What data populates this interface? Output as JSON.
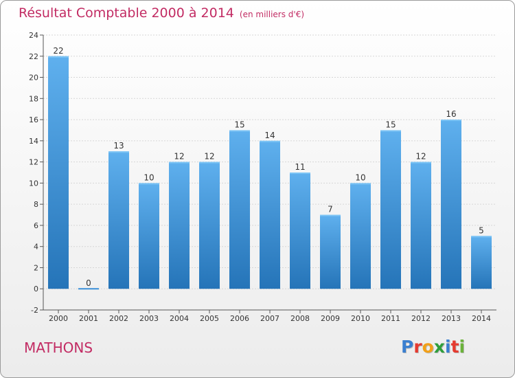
{
  "title": "Résultat Comptable 2000 à 2014",
  "subtitle": "(en milliers d'€)",
  "commune": "MATHONS",
  "logo": {
    "letters": [
      "P",
      "r",
      "o",
      "x",
      "i",
      "t",
      "i"
    ],
    "colors": [
      "#3a7fd0",
      "#e53a2f",
      "#f2a019",
      "#2f9e3b",
      "#3a7fd0",
      "#e53a2f",
      "#6bb23a"
    ]
  },
  "colors": {
    "bar": "#3a8fd8",
    "bar_light": "#5fb0ee",
    "bar_dark": "#2574b8",
    "title": "#c22b63"
  },
  "chart_data": {
    "type": "bar",
    "categories": [
      "2000",
      "2001",
      "2002",
      "2003",
      "2004",
      "2005",
      "2006",
      "2007",
      "2008",
      "2009",
      "2010",
      "2011",
      "2012",
      "2013",
      "2014"
    ],
    "values": [
      22,
      0,
      13,
      10,
      12,
      12,
      15,
      14,
      11,
      7,
      10,
      15,
      12,
      16,
      5
    ],
    "ylim": [
      -2,
      24
    ],
    "yticks": [
      -2,
      0,
      2,
      4,
      6,
      8,
      10,
      12,
      14,
      16,
      18,
      20,
      22,
      24
    ],
    "grid": true,
    "data_labels": true
  }
}
